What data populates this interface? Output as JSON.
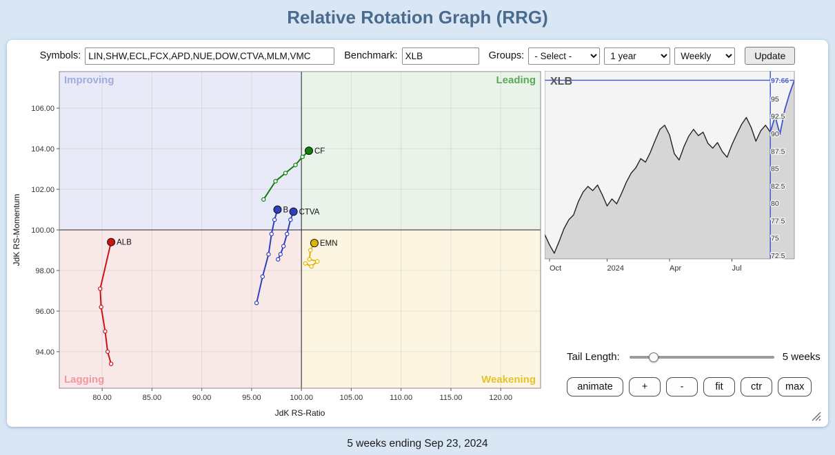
{
  "header": {
    "title": "Relative Rotation Graph (RRG)"
  },
  "toolbar": {
    "symbols_label": "Symbols:",
    "symbols_value": "LIN,SHW,ECL,FCX,APD,NUE,DOW,CTVA,MLM,VMC",
    "benchmark_label": "Benchmark:",
    "benchmark_value": "XLB",
    "groups_label": "Groups:",
    "groups_option": "- Select -",
    "period_option": "1 year",
    "frequency_option": "Weekly",
    "update_label": "Update"
  },
  "controls": {
    "tail_length_label": "Tail Length:",
    "tail_length_value": "5 weeks",
    "buttons": [
      {
        "label": "animate"
      },
      {
        "label": "+"
      },
      {
        "label": "-"
      },
      {
        "label": "fit"
      },
      {
        "label": "ctr"
      },
      {
        "label": "max"
      }
    ]
  },
  "footer": {
    "text": "5 weeks ending Sep 23, 2024"
  },
  "chart_data": [
    {
      "type": "scatter",
      "title": "Relative Rotation Graph",
      "xlabel": "JdK RS-Ratio",
      "ylabel": "JdK RS-Momentum",
      "xlim": [
        75.7,
        124.0
      ],
      "ylim": [
        92.2,
        107.8
      ],
      "x_ticks": [
        80,
        85,
        90,
        95,
        100,
        105,
        110,
        115,
        120
      ],
      "y_ticks": [
        94,
        96,
        98,
        100,
        102,
        104,
        106
      ],
      "center": [
        100,
        100
      ],
      "grid": true,
      "quadrants": [
        {
          "name": "Improving",
          "position": "top-left",
          "bg": "#e9eaf7",
          "label_color": "#a0abdc"
        },
        {
          "name": "Leading",
          "position": "top-right",
          "bg": "#e9f3e9",
          "label_color": "#5aa85a"
        },
        {
          "name": "Lagging",
          "position": "bottom-left",
          "bg": "#f9e8e8",
          "label_color": "#f0989f"
        },
        {
          "name": "Weakening",
          "position": "bottom-right",
          "bg": "#fbf5e1",
          "label_color": "#e3c32d"
        }
      ],
      "series": [
        {
          "name": "ALB",
          "color": "#cc1111",
          "points": [
            [
              80.9,
              93.4
            ],
            [
              80.55,
              94.0
            ],
            [
              80.3,
              95.0
            ],
            [
              79.9,
              96.2
            ],
            [
              79.8,
              97.1
            ],
            [
              80.9,
              99.4
            ]
          ]
        },
        {
          "name": "CF",
          "color": "#0e7e0e",
          "points": [
            [
              96.2,
              101.5
            ],
            [
              97.4,
              102.4
            ],
            [
              98.4,
              102.8
            ],
            [
              99.4,
              103.2
            ],
            [
              100.1,
              103.6
            ],
            [
              100.75,
              103.9
            ]
          ]
        },
        {
          "name": "B",
          "color": "#2e3ebc",
          "points": [
            [
              95.5,
              96.4
            ],
            [
              96.1,
              97.7
            ],
            [
              96.7,
              98.8
            ],
            [
              97.0,
              99.8
            ],
            [
              97.3,
              100.5
            ],
            [
              97.6,
              101.0
            ]
          ]
        },
        {
          "name": "CTVA",
          "color": "#2e3ebc",
          "points": [
            [
              97.65,
              98.55
            ],
            [
              97.9,
              98.8
            ],
            [
              98.2,
              99.2
            ],
            [
              98.55,
              99.8
            ],
            [
              98.9,
              100.5
            ],
            [
              99.2,
              100.9
            ]
          ]
        },
        {
          "name": "EMN",
          "color": "#e0b400",
          "points": [
            [
              100.4,
              98.35
            ],
            [
              101.0,
              98.2
            ],
            [
              101.6,
              98.45
            ],
            [
              100.8,
              98.55
            ],
            [
              100.9,
              99.0
            ],
            [
              101.3,
              99.35
            ]
          ]
        }
      ]
    },
    {
      "type": "area",
      "symbol": "XLB",
      "ylim": [
        72,
        99
      ],
      "y_ticks": [
        95,
        92.5,
        90,
        87.5,
        85,
        82.5,
        80,
        77.5,
        75,
        72.5
      ],
      "x_ticks": [
        {
          "label": "Oct",
          "week": 1
        },
        {
          "label": "2024",
          "week": 13
        },
        {
          "label": "Apr",
          "week": 26
        },
        {
          "label": "Jul",
          "week": 39
        }
      ],
      "last_price": "97.66",
      "tail_weeks": 5,
      "line_color": "#222222",
      "fill_color": "#d6d6d6",
      "bg_color": "#f4f4f4",
      "highlight_color": "#3a53cc",
      "values": [
        75.5,
        74.0,
        72.8,
        74.5,
        76.3,
        77.6,
        78.3,
        80.2,
        81.6,
        82.4,
        81.8,
        82.6,
        81.2,
        79.6,
        80.6,
        79.9,
        81.4,
        83.0,
        84.3,
        85.1,
        86.4,
        85.9,
        87.3,
        89.0,
        90.6,
        91.2,
        89.8,
        87.1,
        86.2,
        88.1,
        89.6,
        90.6,
        89.7,
        90.2,
        88.6,
        87.9,
        88.7,
        87.4,
        86.6,
        88.4,
        89.9,
        91.3,
        92.3,
        90.9,
        88.9,
        90.4,
        91.2,
        90.2,
        92.5,
        89.9,
        93.4,
        95.7,
        97.66
      ]
    }
  ]
}
